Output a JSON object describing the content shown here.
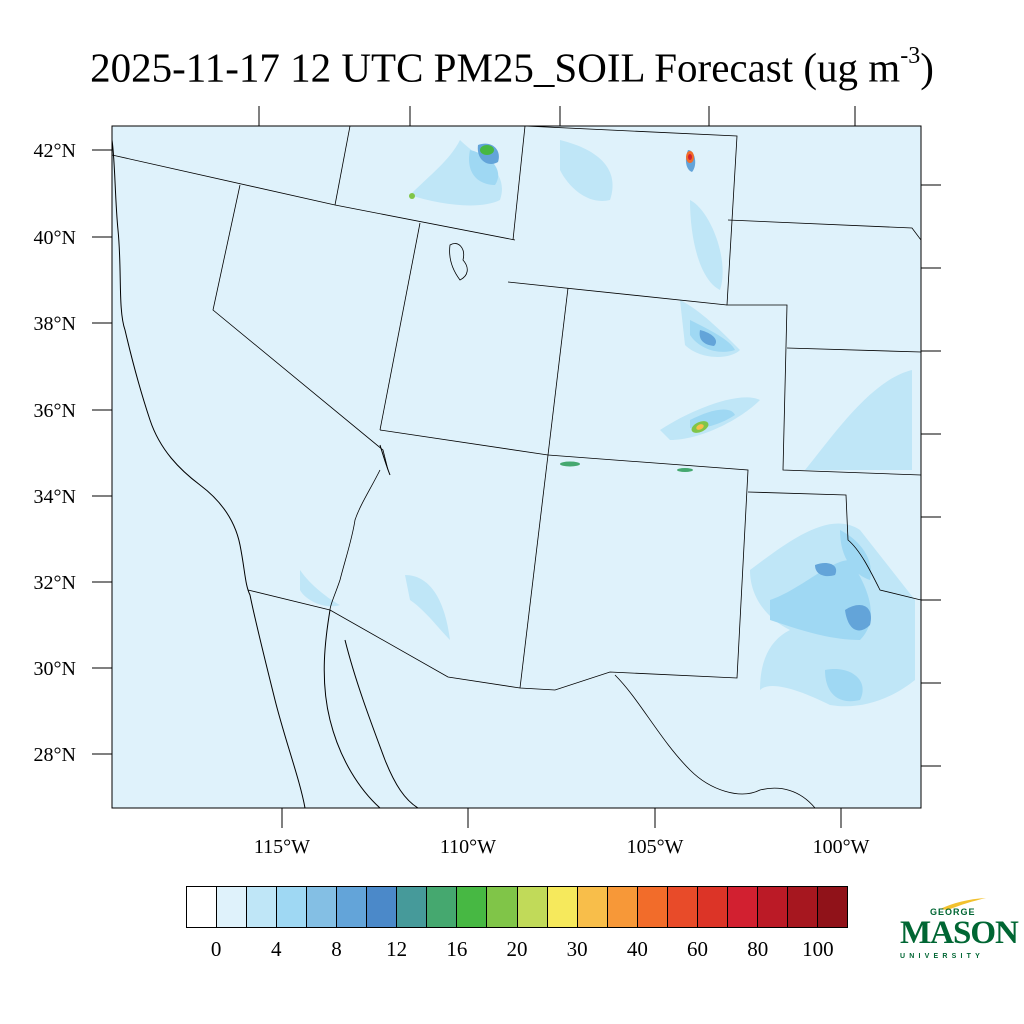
{
  "title": {
    "main": "2025-11-17 12 UTC PM25_SOIL Forecast (ug m",
    "superscript": "-3",
    "close": ")"
  },
  "map": {
    "lat_labels": [
      "42°N",
      "40°N",
      "38°N",
      "36°N",
      "34°N",
      "32°N",
      "30°N",
      "28°N"
    ],
    "lon_labels": [
      "115°W",
      "110°W",
      "105°W",
      "100°W"
    ],
    "background_color": "#dff2fb",
    "boundary_color": "#000000"
  },
  "colorbar": {
    "colors": [
      "#ffffff",
      "#dff2fb",
      "#bfe6f7",
      "#9fd8f3",
      "#84bfe4",
      "#63a4d9",
      "#4b89c9",
      "#469a9a",
      "#45a86f",
      "#47b843",
      "#80c548",
      "#c1da59",
      "#f6e95c",
      "#f8be4a",
      "#f79838",
      "#f26c2a",
      "#e84b29",
      "#dc3427",
      "#d22030",
      "#bb1a26",
      "#a6171f",
      "#901219"
    ],
    "tick_labels": [
      "0",
      "4",
      "8",
      "12",
      "16",
      "20",
      "30",
      "40",
      "60",
      "80",
      "100"
    ]
  },
  "logo": {
    "line1": "GEORGE",
    "line2": "MASON",
    "line3": "UNIVERSITY",
    "color": "#006633",
    "accent": "#f2c12e"
  }
}
